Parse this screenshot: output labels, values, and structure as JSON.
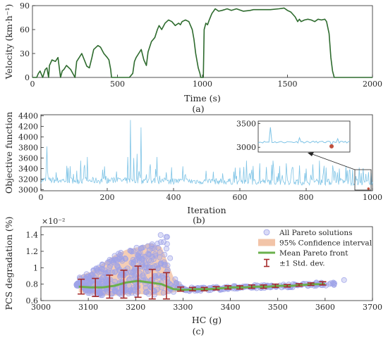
{
  "chart_data": [
    {
      "type": "line",
      "panel_label": "(a)",
      "xlabel": "Time (s)",
      "ylabel": "Velocity (km·h⁻¹)",
      "xlim": [
        0,
        2000
      ],
      "ylim": [
        0,
        90
      ],
      "xticks": [
        "0",
        "500",
        "1000",
        "1500",
        "2000"
      ],
      "yticks": [
        "0",
        "30",
        "60",
        "90"
      ],
      "grid": false,
      "series": [
        {
          "color": "#2e6b2e",
          "x": [
            0,
            25,
            35,
            45,
            60,
            75,
            85,
            95,
            100,
            115,
            135,
            150,
            165,
            175,
            185,
            200,
            225,
            250,
            260,
            275,
            290,
            305,
            320,
            335,
            350,
            360,
            385,
            400,
            420,
            440,
            450,
            460,
            465,
            490,
            510,
            530,
            550,
            570,
            590,
            600,
            610,
            625,
            640,
            655,
            670,
            680,
            700,
            720,
            735,
            745,
            760,
            780,
            800,
            820,
            840,
            860,
            870,
            880,
            900,
            920,
            940,
            950,
            960,
            975,
            985,
            990,
            1000,
            1005,
            1010,
            1020,
            1030,
            1040,
            1055,
            1075,
            1095,
            1115,
            1130,
            1145,
            1170,
            1200,
            1240,
            1280,
            1300,
            1340,
            1400,
            1450,
            1480,
            1500,
            1520,
            1545,
            1560,
            1570,
            1580,
            1600,
            1620,
            1640,
            1660,
            1680,
            1700,
            1720,
            1730,
            1745,
            1755,
            1765,
            1775,
            1800,
            2000
          ],
          "y": [
            0,
            0,
            5,
            8,
            0,
            10,
            12,
            0,
            15,
            22,
            20,
            25,
            0,
            8,
            10,
            15,
            10,
            0,
            20,
            25,
            30,
            22,
            14,
            12,
            25,
            35,
            40,
            38,
            30,
            25,
            22,
            10,
            0,
            0,
            0,
            0,
            0,
            0,
            5,
            20,
            25,
            30,
            35,
            22,
            15,
            32,
            45,
            50,
            60,
            65,
            60,
            68,
            72,
            70,
            65,
            68,
            66,
            70,
            72,
            70,
            60,
            48,
            30,
            12,
            5,
            0,
            0,
            0,
            60,
            68,
            66,
            72,
            80,
            86,
            83,
            84,
            85,
            86,
            84,
            86,
            83,
            84,
            85,
            85,
            85,
            86,
            87,
            84,
            82,
            76,
            70,
            73,
            70,
            72,
            73,
            72,
            70,
            73,
            72,
            73,
            70,
            55,
            25,
            8,
            0,
            0,
            0
          ]
        }
      ]
    },
    {
      "type": "line",
      "panel_label": "(b)",
      "xlabel": "Iteration",
      "ylabel": "Objective function",
      "xlim": [
        0,
        1000
      ],
      "ylim": [
        2980,
        4420
      ],
      "xticks": [
        "0",
        "200",
        "400",
        "600",
        "800",
        "1000"
      ],
      "yticks": [
        "3000",
        "3200",
        "3400",
        "3600",
        "3800",
        "4000",
        "4200",
        "4400"
      ],
      "grid": false,
      "series": [
        {
          "color": "#7fc4e6",
          "baseline": 3180,
          "spikes": [
            {
              "x": 18,
              "y": 3820
            },
            {
              "x": 35,
              "y": 3600
            },
            {
              "x": 55,
              "y": 3700
            },
            {
              "x": 75,
              "y": 3500
            },
            {
              "x": 95,
              "y": 3650
            },
            {
              "x": 120,
              "y": 3550
            },
            {
              "x": 140,
              "y": 3620
            },
            {
              "x": 165,
              "y": 3480
            },
            {
              "x": 185,
              "y": 3700
            },
            {
              "x": 205,
              "y": 3580
            },
            {
              "x": 225,
              "y": 3450
            },
            {
              "x": 235,
              "y": 3650
            },
            {
              "x": 245,
              "y": 3820
            },
            {
              "x": 255,
              "y": 3500
            },
            {
              "x": 262,
              "y": 3620
            },
            {
              "x": 270,
              "y": 4320
            },
            {
              "x": 280,
              "y": 3600
            },
            {
              "x": 290,
              "y": 3680
            },
            {
              "x": 302,
              "y": 4180
            },
            {
              "x": 315,
              "y": 3550
            },
            {
              "x": 330,
              "y": 3480
            },
            {
              "x": 350,
              "y": 3620
            },
            {
              "x": 365,
              "y": 3450
            },
            {
              "x": 385,
              "y": 3550
            },
            {
              "x": 405,
              "y": 3500
            },
            {
              "x": 425,
              "y": 3450
            },
            {
              "x": 445,
              "y": 3600
            },
            {
              "x": 465,
              "y": 3720
            },
            {
              "x": 485,
              "y": 3480
            },
            {
              "x": 505,
              "y": 3550
            },
            {
              "x": 525,
              "y": 3450
            },
            {
              "x": 545,
              "y": 3600
            },
            {
              "x": 565,
              "y": 3450
            },
            {
              "x": 585,
              "y": 3500
            },
            {
              "x": 600,
              "y": 3420
            },
            {
              "x": 620,
              "y": 3550
            },
            {
              "x": 640,
              "y": 3450
            },
            {
              "x": 660,
              "y": 3500
            },
            {
              "x": 680,
              "y": 3430
            },
            {
              "x": 700,
              "y": 3550
            },
            {
              "x": 720,
              "y": 3450
            },
            {
              "x": 740,
              "y": 3500
            },
            {
              "x": 760,
              "y": 3420
            },
            {
              "x": 780,
              "y": 3460
            },
            {
              "x": 800,
              "y": 3400
            },
            {
              "x": 820,
              "y": 3480
            },
            {
              "x": 840,
              "y": 3550
            },
            {
              "x": 860,
              "y": 3420
            },
            {
              "x": 880,
              "y": 3460
            },
            {
              "x": 900,
              "y": 3400
            },
            {
              "x": 920,
              "y": 3450
            },
            {
              "x": 940,
              "y": 3380
            },
            {
              "x": 960,
              "y": 3420
            },
            {
              "x": 980,
              "y": 3300
            },
            {
              "x": 995,
              "y": 3320
            }
          ]
        }
      ],
      "inset": {
        "xlim": [
          940,
          1000
        ],
        "ylim": [
          2900,
          3550
        ],
        "yticks": [
          "3000",
          "3500"
        ],
        "best_point": {
          "x": 988,
          "y": 3020,
          "color": "#c0503c"
        }
      }
    },
    {
      "type": "scatter",
      "panel_label": "(c)",
      "xlabel": "HC (g)",
      "ylabel": "PCS degradation (%)",
      "exponent_label": "×10⁻²",
      "xlim": [
        3000,
        3700
      ],
      "ylim": [
        0.6,
        1.5
      ],
      "xticks": [
        "3000",
        "3100",
        "3200",
        "3300",
        "3400",
        "3500",
        "3600",
        "3700"
      ],
      "yticks": [
        "0.6",
        "0.8",
        "1",
        "1.2",
        "1.4"
      ],
      "grid": false,
      "legend_position": "top-right",
      "legend": [
        "All Pareto solutions",
        "95% Confidence interval",
        "Mean Pareto front",
        "±1 Std. dev."
      ],
      "colors": {
        "scatter": "#9fa3e8",
        "ci": "#f2c4a8",
        "mean": "#6ab04c",
        "errbar": "#a52a2a"
      },
      "mean_front": {
        "x": [
          3080,
          3105,
          3130,
          3155,
          3180,
          3205,
          3230,
          3255,
          3280,
          3305,
          3330,
          3355,
          3380,
          3405,
          3430,
          3455,
          3480,
          3505,
          3530,
          3555,
          3580,
          3600
        ],
        "y": [
          0.77,
          0.76,
          0.76,
          0.78,
          0.82,
          0.84,
          0.82,
          0.8,
          0.74,
          0.73,
          0.74,
          0.74,
          0.75,
          0.76,
          0.76,
          0.77,
          0.77,
          0.78,
          0.78,
          0.79,
          0.8,
          0.8
        ]
      },
      "ci_upper": [
        0.9,
        0.95,
        1.05,
        1.15,
        1.22,
        1.25,
        1.3,
        1.25,
        0.88,
        0.76,
        0.76,
        0.76,
        0.77,
        0.78,
        0.78,
        0.79,
        0.79,
        0.8,
        0.8,
        0.81,
        0.82,
        0.82
      ],
      "ci_lower": [
        0.7,
        0.68,
        0.66,
        0.66,
        0.67,
        0.68,
        0.67,
        0.66,
        0.7,
        0.71,
        0.72,
        0.72,
        0.73,
        0.74,
        0.74,
        0.75,
        0.75,
        0.76,
        0.76,
        0.77,
        0.78,
        0.78
      ],
      "errorbars": {
        "x": [
          3085,
          3115,
          3145,
          3175,
          3205,
          3235,
          3265,
          3295,
          3320,
          3345,
          3370,
          3395,
          3420,
          3445,
          3470,
          3495,
          3520,
          3545,
          3570,
          3595
        ],
        "mean": [
          0.77,
          0.76,
          0.77,
          0.8,
          0.83,
          0.8,
          0.78,
          0.74,
          0.74,
          0.74,
          0.75,
          0.76,
          0.76,
          0.77,
          0.77,
          0.78,
          0.78,
          0.79,
          0.8,
          0.81
        ],
        "std": [
          0.09,
          0.11,
          0.14,
          0.17,
          0.19,
          0.18,
          0.16,
          0.025,
          0.02,
          0.02,
          0.02,
          0.02,
          0.02,
          0.02,
          0.02,
          0.02,
          0.015,
          0.015,
          0.015,
          0.02
        ]
      }
    }
  ]
}
